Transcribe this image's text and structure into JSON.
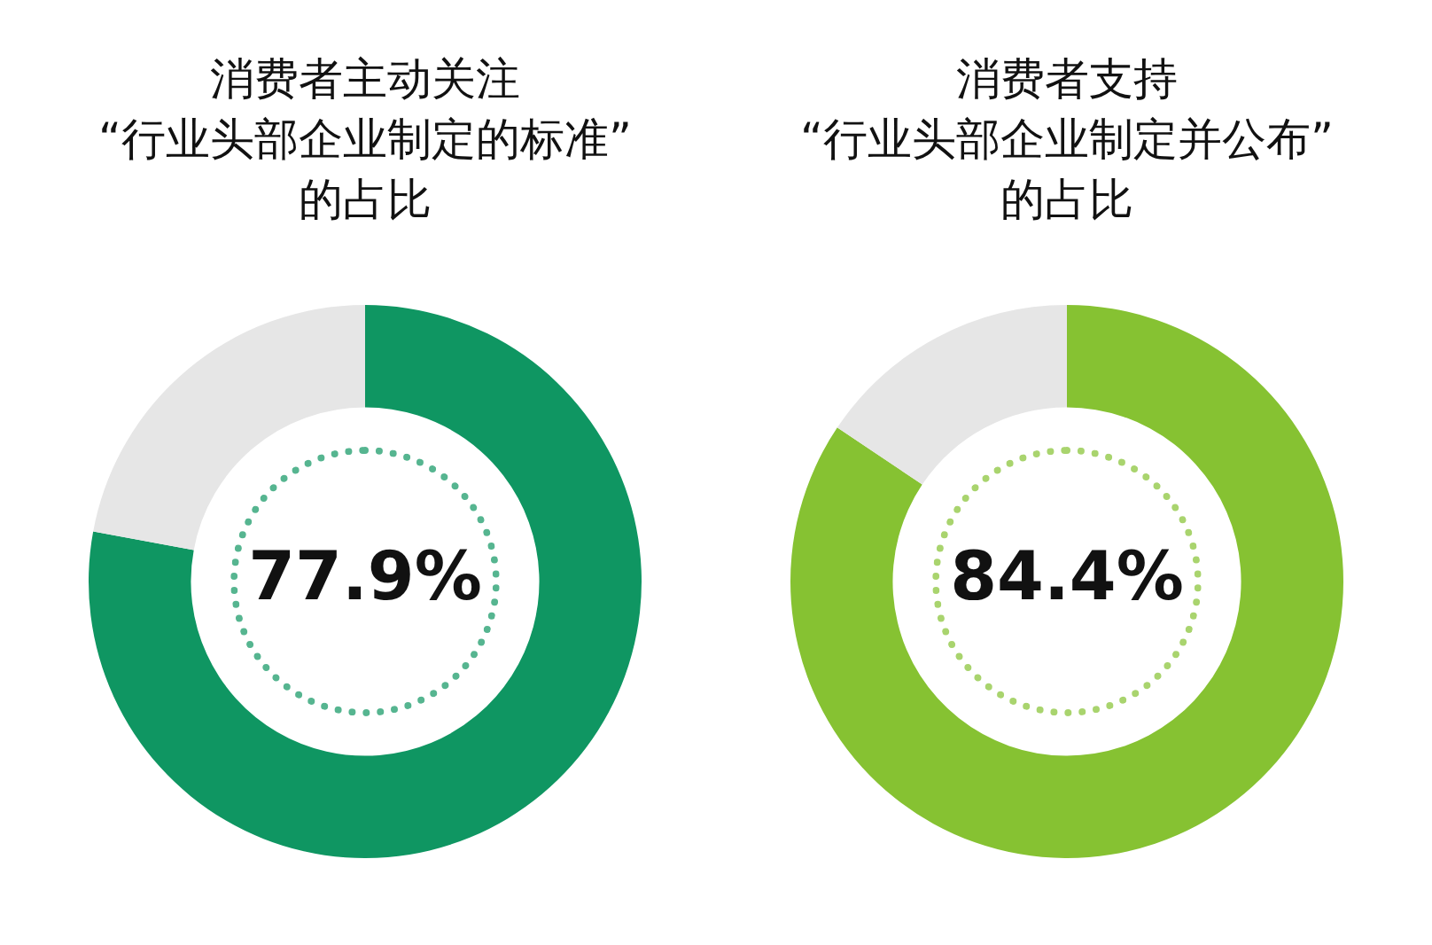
{
  "chart_data": [
    {
      "type": "donut",
      "title": "消费者主动关注\n“行业头部企业制定的标准”\n的占比",
      "categories": [
        null,
        null
      ],
      "values": [
        77.9,
        22.1
      ],
      "colors": [
        "#0f9662",
        "#e6e6e6"
      ],
      "value_labels": [
        "77.9%",
        null
      ],
      "legend": false
    },
    {
      "type": "donut",
      "title": "消费者支持\n“行业头部企业制定并公布”\n的占比",
      "categories": [
        null,
        null
      ],
      "values": [
        84.4,
        15.6
      ],
      "colors": [
        "#86c232",
        "#e6e6e6"
      ],
      "value_labels": [
        "84.4%",
        null
      ],
      "legend": false
    }
  ]
}
